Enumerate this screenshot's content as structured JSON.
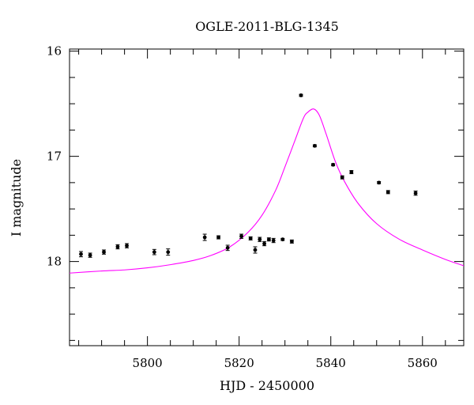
{
  "chart_data": {
    "type": "scatter",
    "title": "OGLE-2011-BLG-1345",
    "xlabel": "HJD - 2450000",
    "ylabel": "I magnitude",
    "xlim": [
      5783,
      5869
    ],
    "ylim": [
      18.8,
      15.98
    ],
    "y_inverted": true,
    "x_ticks": [
      5800,
      5820,
      5840,
      5860
    ],
    "y_ticks": [
      16,
      17,
      18
    ],
    "x_minor_step": 5,
    "y_minor_step": 0.25,
    "grid": false,
    "series": [
      {
        "kind": "points_with_errorbars",
        "color": "#000000",
        "points": [
          {
            "x": 5785.5,
            "y": 17.93,
            "err": 0.025
          },
          {
            "x": 5787.5,
            "y": 17.94,
            "err": 0.02
          },
          {
            "x": 5790.5,
            "y": 17.91,
            "err": 0.02
          },
          {
            "x": 5793.5,
            "y": 17.86,
            "err": 0.02
          },
          {
            "x": 5795.5,
            "y": 17.85,
            "err": 0.02
          },
          {
            "x": 5801.5,
            "y": 17.91,
            "err": 0.025
          },
          {
            "x": 5804.5,
            "y": 17.91,
            "err": 0.03
          },
          {
            "x": 5812.5,
            "y": 17.77,
            "err": 0.03
          },
          {
            "x": 5815.5,
            "y": 17.77,
            "err": 0.015
          },
          {
            "x": 5817.5,
            "y": 17.87,
            "err": 0.025
          },
          {
            "x": 5820.5,
            "y": 17.76,
            "err": 0.02
          },
          {
            "x": 5822.5,
            "y": 17.78,
            "err": 0.015
          },
          {
            "x": 5823.5,
            "y": 17.89,
            "err": 0.03
          },
          {
            "x": 5824.5,
            "y": 17.79,
            "err": 0.02
          },
          {
            "x": 5825.5,
            "y": 17.83,
            "err": 0.02
          },
          {
            "x": 5826.5,
            "y": 17.79,
            "err": 0.015
          },
          {
            "x": 5827.5,
            "y": 17.8,
            "err": 0.02
          },
          {
            "x": 5829.5,
            "y": 17.79,
            "err": 0.01
          },
          {
            "x": 5831.5,
            "y": 17.81,
            "err": 0.015
          },
          {
            "x": 5833.5,
            "y": 16.42,
            "err": 0.01
          },
          {
            "x": 5836.5,
            "y": 16.9,
            "err": 0.01
          },
          {
            "x": 5840.5,
            "y": 17.08,
            "err": 0.01
          },
          {
            "x": 5842.5,
            "y": 17.2,
            "err": 0.015
          },
          {
            "x": 5844.5,
            "y": 17.15,
            "err": 0.015
          },
          {
            "x": 5850.5,
            "y": 17.25,
            "err": 0.01
          },
          {
            "x": 5852.5,
            "y": 17.34,
            "err": 0.015
          },
          {
            "x": 5858.5,
            "y": 17.35,
            "err": 0.02
          }
        ]
      },
      {
        "kind": "model_curve",
        "color": "#ff00ff",
        "x": [
          5783,
          5790,
          5795,
          5800,
          5805,
          5810,
          5814,
          5818,
          5822,
          5825,
          5828,
          5830,
          5832,
          5834,
          5835,
          5836.3,
          5837.5,
          5839,
          5841,
          5843,
          5846,
          5850,
          5855,
          5860,
          5865,
          5869
        ],
        "y": [
          18.11,
          18.09,
          18.08,
          18.06,
          18.03,
          17.99,
          17.94,
          17.86,
          17.72,
          17.56,
          17.32,
          17.1,
          16.87,
          16.64,
          16.58,
          16.55,
          16.61,
          16.79,
          17.05,
          17.24,
          17.45,
          17.64,
          17.79,
          17.89,
          17.98,
          18.04
        ]
      }
    ]
  }
}
